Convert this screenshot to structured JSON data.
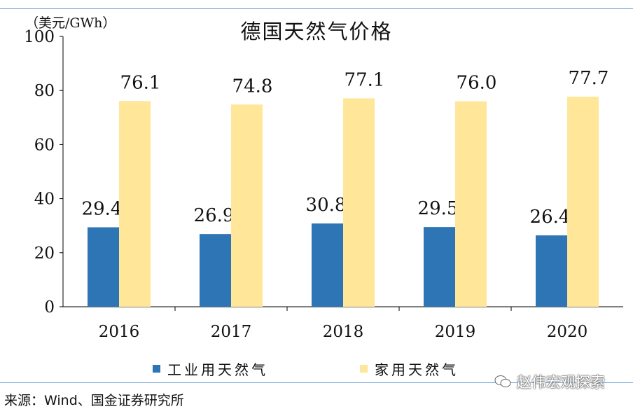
{
  "chart_data": {
    "type": "bar",
    "title": "德国天然气价格",
    "unit": "（美元/GWh）",
    "categories": [
      "2016",
      "2017",
      "2018",
      "2019",
      "2020"
    ],
    "series": [
      {
        "name": "工业用天然气",
        "values": [
          29.4,
          26.9,
          30.8,
          29.5,
          26.4
        ],
        "labels": [
          "29.4",
          "26.9",
          "30.8",
          "29.5",
          "26.4"
        ],
        "color": "#2e75b6"
      },
      {
        "name": "家用天然气",
        "values": [
          76.1,
          74.8,
          77.1,
          76.0,
          77.7
        ],
        "labels": [
          "76.1",
          "74.8",
          "77.1",
          "76.0",
          "77.7"
        ],
        "color": "#ffe699"
      }
    ],
    "ylim": [
      0,
      100
    ],
    "yticks": [
      "0",
      "20",
      "40",
      "60",
      "80",
      "100"
    ],
    "legend": "bottom",
    "grid": false
  },
  "source": "来源：Wind、国金证券研究所",
  "watermark": "赵伟宏观探索",
  "colors": {
    "rule": "#6fa0d8"
  }
}
